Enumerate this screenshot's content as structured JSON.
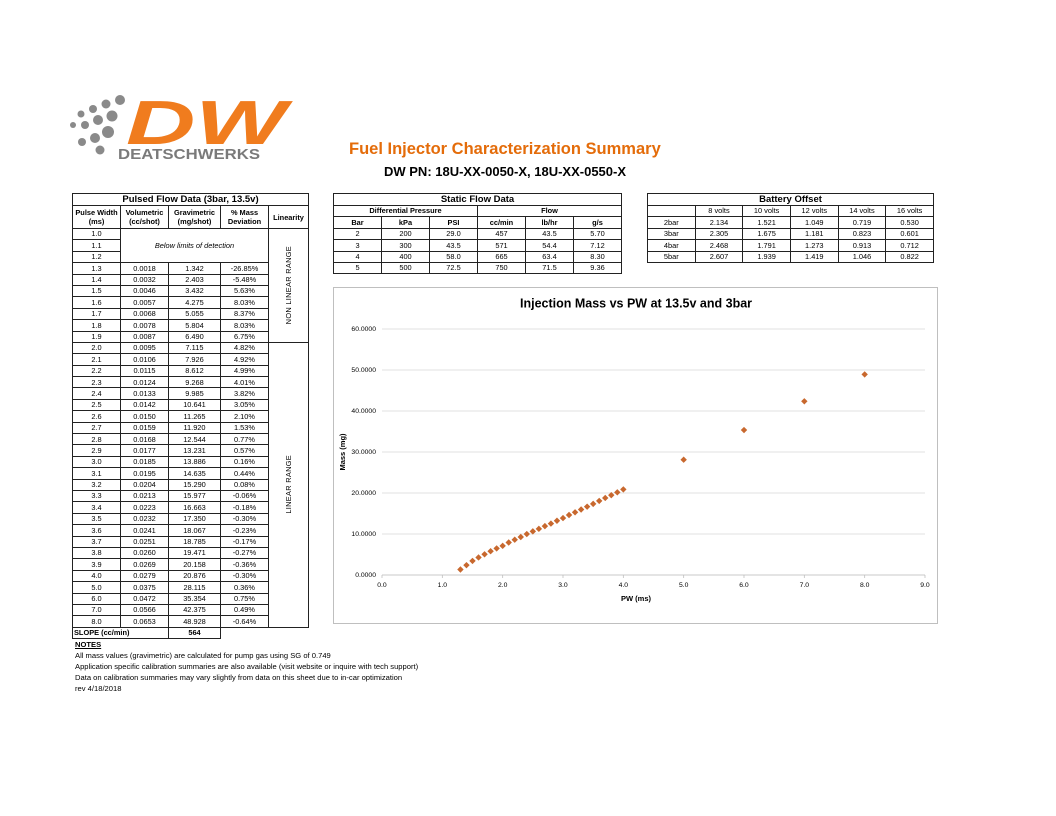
{
  "logo": {
    "letters": "DW",
    "name": "DEATSCHWERKS"
  },
  "header": {
    "title": "Fuel Injector Characterization Summary",
    "subtitle": "DW PN: 18U-XX-0050-X, 18U-XX-0550-X"
  },
  "pulsed": {
    "title": "Pulsed Flow Data (3bar, 13.5v)",
    "headers": [
      [
        "Pulse Width",
        "(ms)"
      ],
      [
        "Volumetric",
        "(cc/shot)"
      ],
      [
        "Gravimetric",
        "(mg/shot)"
      ],
      [
        "% Mass",
        "Deviation"
      ],
      [
        "Linearity"
      ]
    ],
    "below_detection": "Below limits of detection",
    "sections": [
      {
        "label": "NON LINEAR RANGE",
        "rows": [
          [
            "1.0"
          ],
          [
            "1.1"
          ],
          [
            "1.2"
          ],
          [
            "1.3",
            "0.0018",
            "1.342",
            "-26.85%"
          ],
          [
            "1.4",
            "0.0032",
            "2.403",
            "-5.48%"
          ],
          [
            "1.5",
            "0.0046",
            "3.432",
            "5.63%"
          ],
          [
            "1.6",
            "0.0057",
            "4.275",
            "8.03%"
          ],
          [
            "1.7",
            "0.0068",
            "5.055",
            "8.37%"
          ],
          [
            "1.8",
            "0.0078",
            "5.804",
            "8.03%"
          ],
          [
            "1.9",
            "0.0087",
            "6.490",
            "6.75%"
          ]
        ]
      },
      {
        "label": "LINEAR RANGE",
        "rows": [
          [
            "2.0",
            "0.0095",
            "7.115",
            "4.82%"
          ],
          [
            "2.1",
            "0.0106",
            "7.926",
            "4.92%"
          ],
          [
            "2.2",
            "0.0115",
            "8.612",
            "4.99%"
          ],
          [
            "2.3",
            "0.0124",
            "9.268",
            "4.01%"
          ],
          [
            "2.4",
            "0.0133",
            "9.985",
            "3.82%"
          ],
          [
            "2.5",
            "0.0142",
            "10.641",
            "3.05%"
          ],
          [
            "2.6",
            "0.0150",
            "11.265",
            "2.10%"
          ],
          [
            "2.7",
            "0.0159",
            "11.920",
            "1.53%"
          ],
          [
            "2.8",
            "0.0168",
            "12.544",
            "0.77%"
          ],
          [
            "2.9",
            "0.0177",
            "13.231",
            "0.57%"
          ],
          [
            "3.0",
            "0.0185",
            "13.886",
            "0.16%"
          ],
          [
            "3.1",
            "0.0195",
            "14.635",
            "0.44%"
          ],
          [
            "3.2",
            "0.0204",
            "15.290",
            "0.08%"
          ],
          [
            "3.3",
            "0.0213",
            "15.977",
            "-0.06%"
          ],
          [
            "3.4",
            "0.0223",
            "16.663",
            "-0.18%"
          ],
          [
            "3.5",
            "0.0232",
            "17.350",
            "-0.30%"
          ],
          [
            "3.6",
            "0.0241",
            "18.067",
            "-0.23%"
          ],
          [
            "3.7",
            "0.0251",
            "18.785",
            "-0.17%"
          ],
          [
            "3.8",
            "0.0260",
            "19.471",
            "-0.27%"
          ],
          [
            "3.9",
            "0.0269",
            "20.158",
            "-0.36%"
          ],
          [
            "4.0",
            "0.0279",
            "20.876",
            "-0.30%"
          ],
          [
            "5.0",
            "0.0375",
            "28.115",
            "0.36%"
          ],
          [
            "6.0",
            "0.0472",
            "35.354",
            "0.75%"
          ],
          [
            "7.0",
            "0.0566",
            "42.375",
            "0.49%"
          ],
          [
            "8.0",
            "0.0653",
            "48.928",
            "-0.64%"
          ]
        ]
      }
    ],
    "slope_label": "SLOPE (cc/min)",
    "slope": "564"
  },
  "static": {
    "title": "Static Flow Data",
    "groups": [
      "Differential Pressure",
      "Flow"
    ],
    "columns": [
      "Bar",
      "kPa",
      "PSI",
      "cc/min",
      "lb/hr",
      "g/s"
    ],
    "rows": [
      [
        "2",
        "200",
        "29.0",
        "457",
        "43.5",
        "5.70"
      ],
      [
        "3",
        "300",
        "43.5",
        "571",
        "54.4",
        "7.12"
      ],
      [
        "4",
        "400",
        "58.0",
        "665",
        "63.4",
        "8.30"
      ],
      [
        "5",
        "500",
        "72.5",
        "750",
        "71.5",
        "9.36"
      ]
    ]
  },
  "battery": {
    "title": "Battery Offset",
    "columns": [
      "8 volts",
      "10 volts",
      "12 volts",
      "14 volts",
      "16 volts"
    ],
    "rows": [
      [
        "2bar",
        "2.134",
        "1.521",
        "1.049",
        "0.719",
        "0.530"
      ],
      [
        "3bar",
        "2.305",
        "1.675",
        "1.181",
        "0.823",
        "0.601"
      ],
      [
        "4bar",
        "2.468",
        "1.791",
        "1.273",
        "0.913",
        "0.712"
      ],
      [
        "5bar",
        "2.607",
        "1.939",
        "1.419",
        "1.046",
        "0.822"
      ]
    ]
  },
  "chart_data": {
    "type": "scatter",
    "title": "Injection Mass vs PW at 13.5v and 3bar",
    "x_label": "PW (ms)",
    "y_label": "Mass (mg)",
    "color": "#c8682e",
    "grid": true,
    "x": [
      1.3,
      1.4,
      1.5,
      1.6,
      1.7,
      1.8,
      1.9,
      2.0,
      2.1,
      2.2,
      2.3,
      2.4,
      2.5,
      2.6,
      2.7,
      2.8,
      2.9,
      3.0,
      3.1,
      3.2,
      3.3,
      3.4,
      3.5,
      3.6,
      3.7,
      3.8,
      3.9,
      4.0,
      5.0,
      6.0,
      7.0,
      8.0
    ],
    "values": [
      1.342,
      2.403,
      3.432,
      4.275,
      5.055,
      5.804,
      6.49,
      7.115,
      7.926,
      8.612,
      9.268,
      9.985,
      10.641,
      11.265,
      11.92,
      12.544,
      13.231,
      13.886,
      14.635,
      15.29,
      15.977,
      16.663,
      17.35,
      18.067,
      18.785,
      19.471,
      20.158,
      20.876,
      28.115,
      35.354,
      42.375,
      48.928
    ],
    "xlim": [
      0,
      9
    ],
    "xticks": [
      {
        "value": 0,
        "label": "0.0"
      },
      {
        "value": 1,
        "label": "1.0"
      },
      {
        "value": 2,
        "label": "2.0"
      },
      {
        "value": 3,
        "label": "3.0"
      },
      {
        "value": 4,
        "label": "4.0"
      },
      {
        "value": 5,
        "label": "5.0"
      },
      {
        "value": 6,
        "label": "6.0"
      },
      {
        "value": 7,
        "label": "7.0"
      },
      {
        "value": 8,
        "label": "8.0"
      },
      {
        "value": 9,
        "label": "9.0"
      }
    ],
    "ylim": [
      0,
      60
    ],
    "yticks": [
      {
        "value": 0,
        "label": "0.0000"
      },
      {
        "value": 10,
        "label": "10.0000"
      },
      {
        "value": 20,
        "label": "20.0000"
      },
      {
        "value": 30,
        "label": "30.0000"
      },
      {
        "value": 40,
        "label": "40.0000"
      },
      {
        "value": 50,
        "label": "50.0000"
      },
      {
        "value": 60,
        "label": "60.0000"
      }
    ]
  },
  "notes": {
    "heading": "NOTES",
    "lines": [
      "All mass values (gravimetric) are calculated for pump gas using SG of 0.749",
      "Application specific calibration summaries are also available (visit website or inquire with tech support)",
      "Data on calibration summaries may vary slightly from data on this sheet due to in-car optimization",
      "rev 4/18/2018"
    ]
  }
}
